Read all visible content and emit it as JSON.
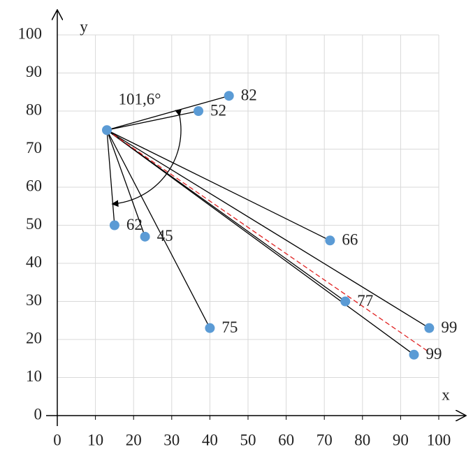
{
  "chart_data": {
    "type": "scatter",
    "x_label": "x",
    "y_label": "y",
    "angle_label": "101,6°",
    "xlim": [
      0,
      100
    ],
    "ylim": [
      0,
      100
    ],
    "xticks": [
      0,
      10,
      20,
      30,
      40,
      50,
      60,
      70,
      80,
      90,
      100
    ],
    "yticks": [
      0,
      10,
      20,
      30,
      40,
      50,
      60,
      70,
      80,
      90,
      100
    ],
    "grid": true,
    "center": [
      13,
      75
    ],
    "series": [
      {
        "color": "#5b9bd5",
        "x": [
          45,
          37,
          15,
          23,
          40,
          71.5,
          75.5,
          97.5,
          93.5
        ],
        "values": [
          84,
          80,
          50,
          47,
          23,
          46,
          30,
          23,
          16
        ],
        "labels": [
          82,
          52,
          62,
          45,
          75,
          66,
          77,
          99,
          99
        ]
      }
    ],
    "trend_line": {
      "x": [
        13,
        97
      ],
      "y": [
        75,
        17
      ],
      "color": "#e02020"
    }
  }
}
